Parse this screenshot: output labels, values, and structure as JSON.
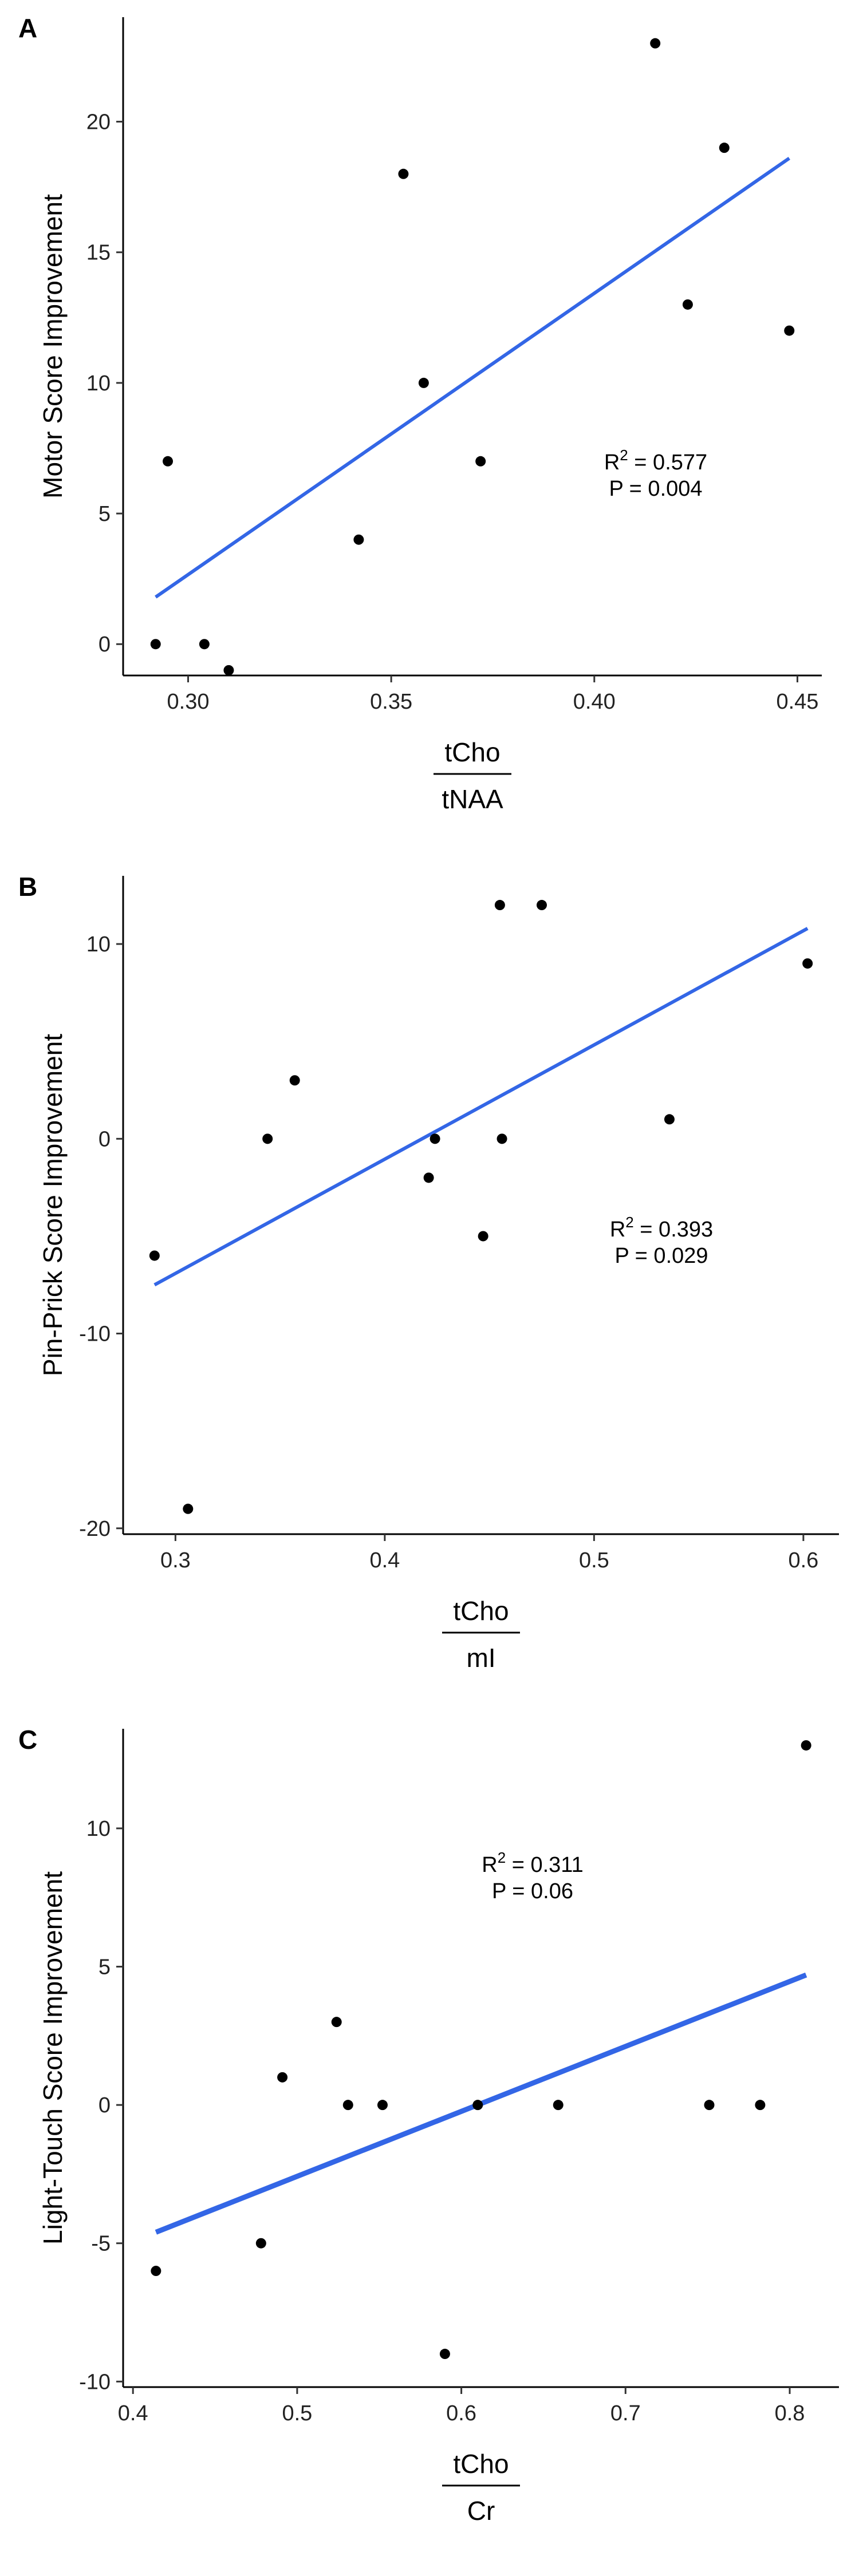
{
  "chart_data": [
    {
      "panel": "A",
      "type": "scatter",
      "x": [
        0.292,
        0.295,
        0.304,
        0.31,
        0.342,
        0.353,
        0.358,
        0.372,
        0.415,
        0.423,
        0.432,
        0.448
      ],
      "y": [
        0,
        7,
        0,
        -1,
        4,
        18,
        10,
        7,
        23,
        13,
        19,
        12
      ],
      "fit": {
        "x": [
          0.292,
          0.448
        ],
        "y": [
          1.8,
          18.6
        ]
      },
      "ylabel": "Motor Score Improvement",
      "xlabel_num": "tCho",
      "xlabel_den": "tNAA",
      "xticks": [
        "0.30",
        "0.35",
        "0.40",
        "0.45"
      ],
      "yticks": [
        "0",
        "5",
        "10",
        "15",
        "20"
      ],
      "xlim": [
        0.284,
        0.456
      ],
      "ylim": [
        -1.2,
        24.0
      ],
      "annotation": {
        "r2_label": "R",
        "r2_value": "= 0.577",
        "p_text": "P = 0.004"
      },
      "grid": false,
      "fit_color": "#3366e6"
    },
    {
      "panel": "B",
      "type": "scatter",
      "x": [
        0.29,
        0.306,
        0.344,
        0.357,
        0.421,
        0.424,
        0.447,
        0.455,
        0.456,
        0.475,
        0.536,
        0.602
      ],
      "y": [
        -6,
        -19,
        0,
        3,
        -2,
        0,
        -5,
        12,
        0,
        12,
        1,
        9
      ],
      "fit": {
        "x": [
          0.29,
          0.602
        ],
        "y": [
          -7.5,
          10.8
        ]
      },
      "ylabel": "Pin-Prick Score Improvement",
      "xlabel_num": "tCho",
      "xlabel_den": "mI",
      "xticks": [
        "0.3",
        "0.4",
        "0.5",
        "0.6"
      ],
      "yticks": [
        "-20",
        "-10",
        "0",
        "10"
      ],
      "xlim": [
        0.275,
        0.617
      ],
      "ylim": [
        -20.3,
        13.5
      ],
      "annotation": {
        "r2_label": "R",
        "r2_value": "= 0.393",
        "p_text": "P = 0.029"
      },
      "grid": false,
      "fit_color": "#3366e6"
    },
    {
      "panel": "C",
      "type": "scatter",
      "x": [
        0.414,
        0.478,
        0.491,
        0.524,
        0.531,
        0.552,
        0.59,
        0.61,
        0.659,
        0.751,
        0.782,
        0.81
      ],
      "y": [
        -6,
        -5,
        1,
        3,
        0,
        0,
        -9,
        0,
        0,
        0,
        0,
        13
      ],
      "fit": {
        "x": [
          0.414,
          0.81
        ],
        "y": [
          -4.6,
          4.7
        ]
      },
      "ylabel": "Light-Touch Score Improvement",
      "xlabel_num": "tCho",
      "xlabel_den": "Cr",
      "xticks": [
        "0.4",
        "0.5",
        "0.6",
        "0.7",
        "0.8"
      ],
      "yticks": [
        "-10",
        "-5",
        "0",
        "5",
        "10"
      ],
      "xlim": [
        0.394,
        0.83
      ],
      "ylim": [
        -10.2,
        13.6
      ],
      "annotation": {
        "r2_label": "R",
        "r2_value": "= 0.311",
        "p_text": "P = 0.06"
      },
      "grid": false,
      "fit_color": "#3366e6"
    }
  ]
}
